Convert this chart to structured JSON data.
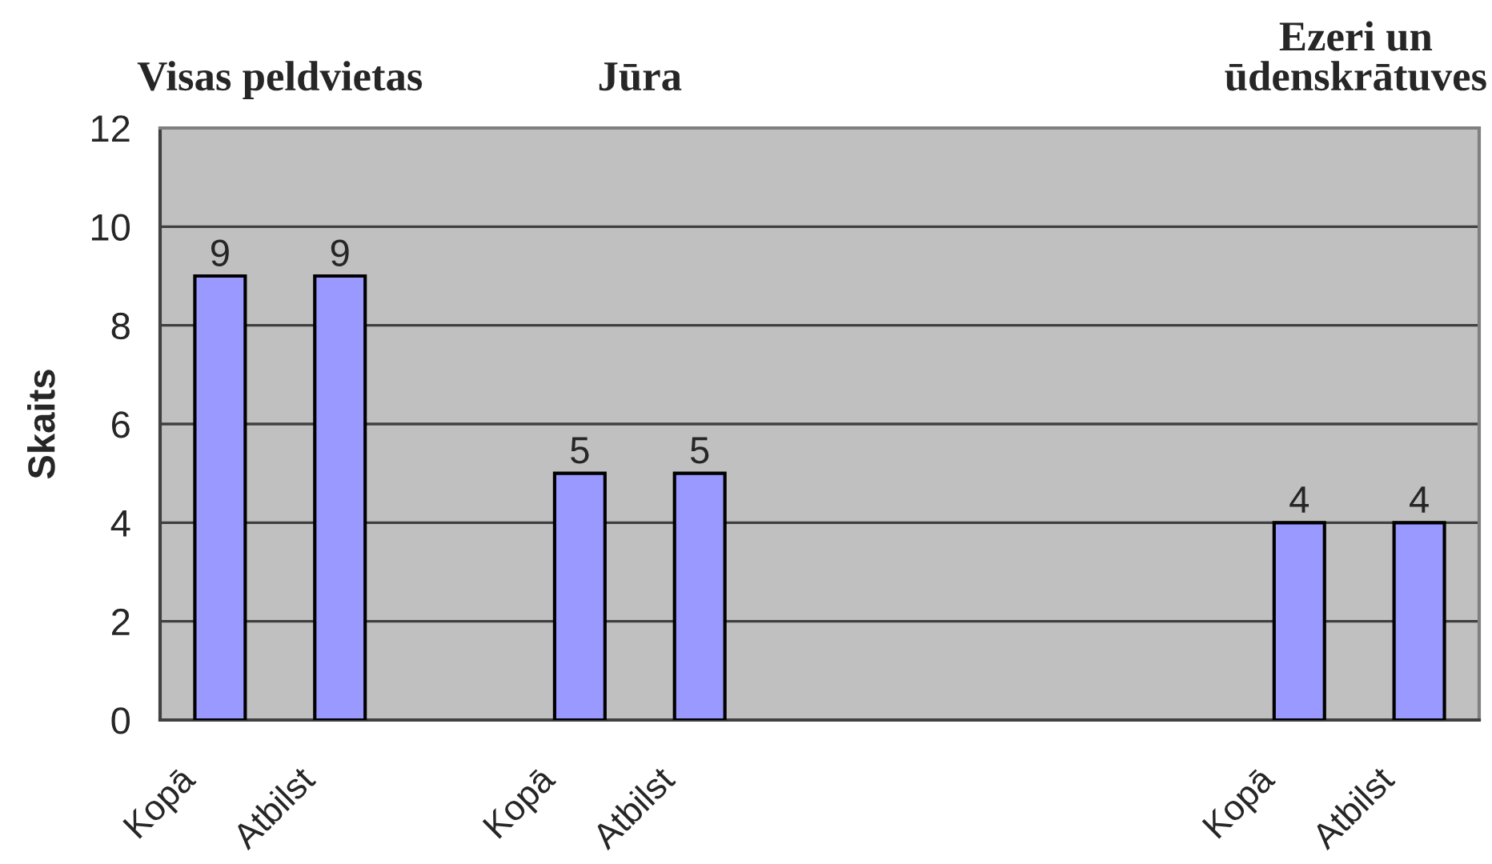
{
  "chart_data": {
    "type": "bar",
    "ylabel": "Skaits",
    "categories": [
      "Kopā",
      "Atbilst",
      null,
      "Kopā",
      "Atbilst",
      null,
      null,
      null,
      null,
      "Kopā",
      "Atbilst"
    ],
    "values": [
      9,
      9,
      null,
      5,
      5,
      null,
      null,
      null,
      null,
      4,
      4
    ],
    "color": "#9999ff",
    "ylim": [
      0,
      12
    ],
    "yticks": [
      0,
      2,
      4,
      6,
      8,
      10,
      12
    ],
    "grid": "y",
    "data_labels": true,
    "annotations": [
      "Visas peldvietas",
      "Jūra",
      "Ezeri un ūdenskrātuves"
    ]
  }
}
